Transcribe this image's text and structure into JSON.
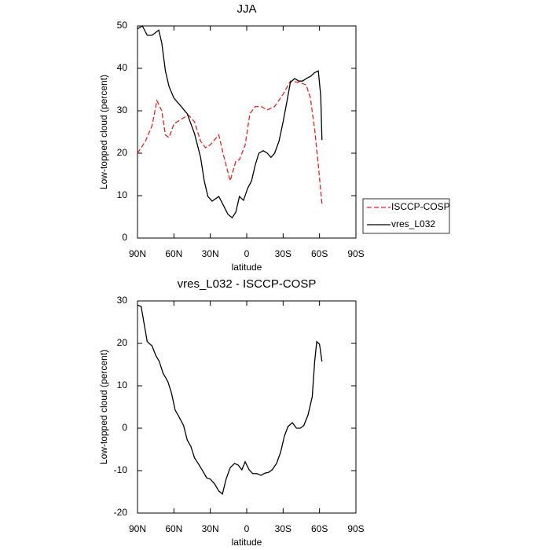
{
  "chart_data": [
    {
      "type": "line",
      "title": "JJA",
      "xlabel": "latitude",
      "ylabel": "Low-topped cloud (percent)",
      "xlim": [
        90,
        -90
      ],
      "ylim": [
        0,
        50
      ],
      "xticks": [
        {
          "value": 90,
          "label": "90N"
        },
        {
          "value": 60,
          "label": "60N"
        },
        {
          "value": 30,
          "label": "30N"
        },
        0,
        {
          "value": -30,
          "label": "30S"
        },
        {
          "value": -60,
          "label": "60S"
        },
        {
          "value": -90,
          "label": "90S"
        }
      ],
      "yticks": [
        0,
        10,
        20,
        30,
        40,
        50
      ],
      "legend": "right",
      "series": [
        {
          "name": "ISCCP-COSP",
          "color": "#e8221b",
          "line_style": "dashed",
          "x": [
            90,
            83.5,
            78,
            74,
            70,
            67,
            64,
            60,
            54,
            48,
            43,
            38,
            34,
            30,
            23,
            19,
            13.6,
            9,
            6,
            1.3,
            -2.6,
            -7,
            -12,
            -17,
            -23,
            -30,
            -36,
            -43,
            -49,
            -52.5,
            -56,
            -59,
            -62
          ],
          "values": [
            20,
            22.8,
            26.5,
            32.4,
            30,
            24.3,
            23.7,
            26.9,
            28,
            29,
            27.4,
            22.8,
            21.3,
            22,
            24.3,
            19.4,
            13.5,
            18.1,
            18.5,
            21.9,
            29.3,
            31,
            31,
            30.2,
            31,
            33.9,
            37,
            36.7,
            36.1,
            33,
            25.6,
            17.2,
            8
          ]
        },
        {
          "name": "vres_L032",
          "color": "#000000",
          "line_style": "solid",
          "x": [
            90,
            86,
            82,
            78,
            72.5,
            70,
            67,
            64,
            60,
            54,
            49,
            43,
            38,
            35,
            32,
            28.5,
            23,
            19,
            15.5,
            12,
            9,
            6,
            2.6,
            -0.7,
            -4,
            -7,
            -10,
            -13.6,
            -17,
            -20,
            -23,
            -26.6,
            -30,
            -33,
            -36,
            -39.5,
            -43,
            -46,
            -49,
            -52.5,
            -56,
            -59,
            -61,
            -62
          ],
          "values": [
            49.3,
            50,
            47.8,
            47.8,
            49,
            46,
            39.4,
            35.7,
            33,
            31,
            29.3,
            24.6,
            19,
            13.5,
            9.8,
            8.7,
            9.8,
            7.6,
            5.6,
            4.8,
            6.1,
            9.8,
            8.9,
            11.7,
            13.5,
            17.2,
            20,
            20.6,
            20,
            19,
            20,
            22.8,
            27.4,
            32,
            36.7,
            37.6,
            37,
            37,
            37.6,
            38.1,
            39,
            39.4,
            33.5,
            23.1
          ]
        }
      ]
    },
    {
      "type": "line",
      "title": "vres_L032 - ISCCP-COSP",
      "xlabel": "latitude",
      "ylabel": "Low-topped cloud (percent)",
      "xlim": [
        90,
        -90
      ],
      "ylim": [
        -20,
        30
      ],
      "xticks": [
        {
          "value": 90,
          "label": "90N"
        },
        {
          "value": 60,
          "label": "60N"
        },
        {
          "value": 30,
          "label": "30N"
        },
        0,
        {
          "value": -30,
          "label": "30S"
        },
        {
          "value": -60,
          "label": "60S"
        },
        {
          "value": -90,
          "label": "90S"
        }
      ],
      "yticks": [
        -20,
        -10,
        0,
        10,
        20,
        30
      ],
      "series": [
        {
          "color": "#000000",
          "line_style": "solid",
          "x": [
            90,
            87,
            82,
            78,
            75,
            72,
            69,
            65,
            62,
            59,
            56,
            52,
            49,
            46,
            43,
            40,
            36,
            33,
            30,
            26.5,
            23,
            20,
            17,
            13.6,
            10,
            7,
            4,
            1.3,
            -2,
            -5,
            -8.4,
            -11.7,
            -15,
            -18,
            -21,
            -24.6,
            -28,
            -31,
            -34,
            -37.6,
            -41,
            -44,
            -47,
            -50.5,
            -54,
            -56,
            -57.7,
            -60,
            -62
          ],
          "values": [
            29,
            28.7,
            20.4,
            19.4,
            17.2,
            15.7,
            13,
            11,
            8.3,
            4.3,
            2.8,
            0.6,
            -2.8,
            -4.3,
            -7,
            -8.3,
            -10.2,
            -11.7,
            -12,
            -13.1,
            -14.8,
            -15.5,
            -12,
            -9.3,
            -8.3,
            -8.7,
            -9.8,
            -7.9,
            -9.8,
            -10.7,
            -10.7,
            -11.1,
            -10.6,
            -10.4,
            -9.8,
            -8.3,
            -5.6,
            -1.9,
            0.4,
            1.3,
            0,
            0,
            0.6,
            3.1,
            7.4,
            15.7,
            20.4,
            19.8,
            15.7
          ]
        }
      ]
    }
  ]
}
